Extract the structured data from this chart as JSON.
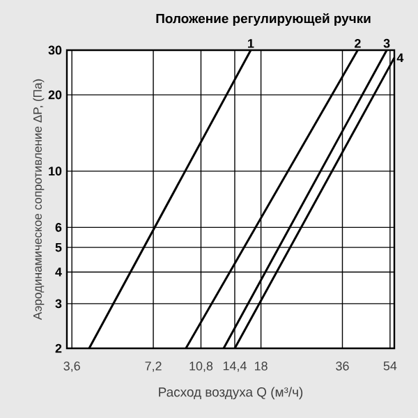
{
  "chart_data": {
    "type": "line",
    "title": "Положение регулирующей ручки",
    "xlabel": "Расход воздуха Q (м³/ч)",
    "ylabel": "Аэродинамическое сопротивление ΔP, (Па)",
    "log": "xy",
    "grid": true,
    "marker": "none",
    "line_style": "solid",
    "xlim": [
      3.45,
      56
    ],
    "ylim": [
      2,
      30
    ],
    "xticks": [
      {
        "value": 3.6,
        "label": "3,6"
      },
      {
        "value": 7.2,
        "label": "7,2"
      },
      {
        "value": 10.8,
        "label": "10,8"
      },
      {
        "value": 14.4,
        "label": "14,4"
      },
      18,
      36,
      54
    ],
    "yticks": [
      2,
      3,
      4,
      5,
      6,
      10,
      20,
      30
    ],
    "series": [
      {
        "name": "1",
        "color": "#000000",
        "x": [
          4.17,
          16.5
        ],
        "values": [
          2,
          30
        ]
      },
      {
        "name": "2",
        "color": "#000000",
        "x": [
          9.5,
          41
        ],
        "values": [
          2,
          30
        ]
      },
      {
        "name": "3",
        "color": "#000000",
        "x": [
          13.1,
          52.5
        ],
        "values": [
          2,
          30
        ]
      },
      {
        "name": "4",
        "color": "#000000",
        "x": [
          14.4,
          56
        ],
        "values": [
          2,
          28
        ]
      }
    ]
  }
}
